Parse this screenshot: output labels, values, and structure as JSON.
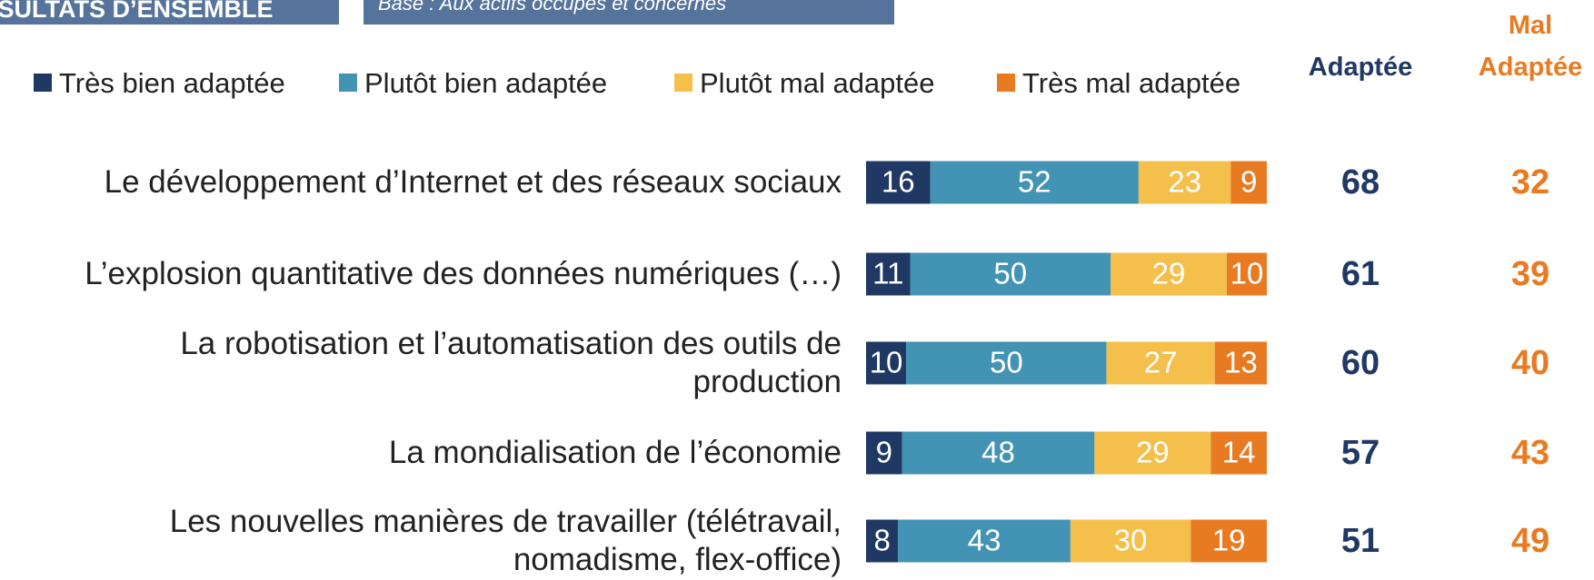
{
  "header": {
    "title": "RÉSULTATS D’ENSEMBLE",
    "base": "Base : Aux actifs occupés et concernés"
  },
  "chart_data": {
    "type": "stacked-bar-horizontal",
    "categories": [
      "Le développement d’Internet et des réseaux sociaux",
      "L’explosion quantitative des données numériques (…)",
      "La robotisation et l’automatisation des outils de production",
      "La mondialisation de l’économie",
      "Les nouvelles manières de travailler (télétravail, nomadisme, flex-office)"
    ],
    "xlim": [
      0,
      100
    ],
    "series": [
      {
        "name": "Très bien adaptée",
        "color": "#1f3864",
        "values": [
          16,
          11,
          10,
          9,
          8
        ]
      },
      {
        "name": "Plutôt bien adaptée",
        "color": "#4393b5",
        "values": [
          52,
          50,
          50,
          48,
          43
        ]
      },
      {
        "name": "Plutôt mal adaptée",
        "color": "#f4bf4a",
        "values": [
          23,
          29,
          27,
          29,
          30
        ]
      },
      {
        "name": "Très mal adaptée",
        "color": "#e87b22",
        "values": [
          9,
          10,
          13,
          14,
          19
        ]
      }
    ],
    "totals": [
      {
        "name": "Adaptée",
        "color": "#1f3864",
        "values": [
          68,
          61,
          60,
          57,
          51
        ]
      },
      {
        "name": "Mal Adaptée",
        "color": "#e87b22",
        "values": [
          32,
          39,
          40,
          43,
          49
        ]
      }
    ]
  }
}
